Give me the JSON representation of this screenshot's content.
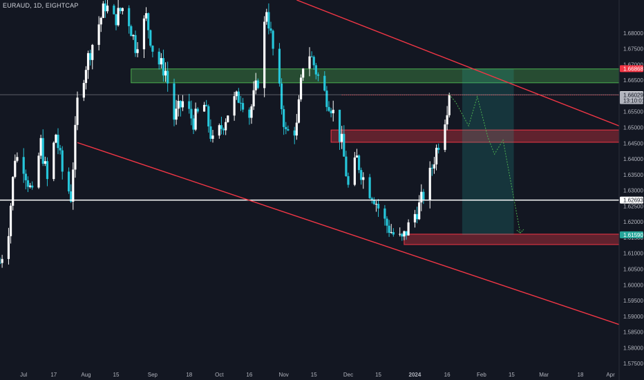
{
  "header": {
    "symbol_label": "EURAUD, 1D, EIGHTCAP"
  },
  "colors": {
    "background": "#131722",
    "bull": "#ffffff",
    "bear": "#26c6da",
    "trendline": "#f23645",
    "demand_zone": "#4caf50",
    "supply_zone": "#f23645",
    "target_zone": "#26a69a",
    "price_tag": "#ffffff",
    "current_tag": "#b2b5be",
    "alert_tag": "#f23645",
    "target_tag": "#26a69a"
  },
  "chart_data": {
    "type": "candlestick",
    "price_axis": {
      "min": 1.5735,
      "max": 1.6905,
      "ticks": [
        {
          "value": 1.68,
          "label": "1.68000"
        },
        {
          "value": 1.675,
          "label": "1.67500"
        },
        {
          "value": 1.67,
          "label": "1.67000"
        },
        {
          "value": 1.665,
          "label": "1.66500"
        },
        {
          "value": 1.66,
          "label": "1.66000"
        },
        {
          "value": 1.655,
          "label": "1.65500"
        },
        {
          "value": 1.65,
          "label": "1.65000"
        },
        {
          "value": 1.645,
          "label": "1.64500"
        },
        {
          "value": 1.64,
          "label": "1.64000"
        },
        {
          "value": 1.635,
          "label": "1.63500"
        },
        {
          "value": 1.63,
          "label": "1.63000"
        },
        {
          "value": 1.625,
          "label": "1.62500"
        },
        {
          "value": 1.62,
          "label": "1.62000"
        },
        {
          "value": 1.615,
          "label": "1.61500"
        },
        {
          "value": 1.61,
          "label": "1.61000"
        },
        {
          "value": 1.605,
          "label": "1.60500"
        },
        {
          "value": 1.6,
          "label": "1.60000"
        },
        {
          "value": 1.595,
          "label": "1.59500"
        },
        {
          "value": 1.59,
          "label": "1.59000"
        },
        {
          "value": 1.585,
          "label": "1.58500"
        },
        {
          "value": 1.58,
          "label": "1.58000"
        },
        {
          "value": 1.575,
          "label": "1.57500"
        }
      ]
    },
    "time_axis": {
      "start": "2023-06-22",
      "end": "2024-04-05",
      "ticks": [
        {
          "date": "2023-07-03",
          "label": "Jul"
        },
        {
          "date": "2023-07-17",
          "label": "17"
        },
        {
          "date": "2023-08-01",
          "label": "Aug"
        },
        {
          "date": "2023-08-15",
          "label": "15"
        },
        {
          "date": "2023-09-01",
          "label": "Sep"
        },
        {
          "date": "2023-09-18",
          "label": "18"
        },
        {
          "date": "2023-10-02",
          "label": "Oct"
        },
        {
          "date": "2023-10-16",
          "label": "16"
        },
        {
          "date": "2023-11-01",
          "label": "Nov"
        },
        {
          "date": "2023-11-15",
          "label": "15"
        },
        {
          "date": "2023-12-01",
          "label": "Dec"
        },
        {
          "date": "2023-12-15",
          "label": "15"
        },
        {
          "date": "2024-01-01",
          "label": "2024"
        },
        {
          "date": "2024-01-16",
          "label": "16"
        },
        {
          "date": "2024-02-01",
          "label": "Feb"
        },
        {
          "date": "2024-02-15",
          "label": "15"
        },
        {
          "date": "2024-03-01",
          "label": "Mar"
        },
        {
          "date": "2024-03-18",
          "label": "18"
        },
        {
          "date": "2024-04-01",
          "label": "Apr"
        }
      ]
    },
    "anchors": [
      {
        "date": "2023-06-22",
        "price": 1.607
      },
      {
        "date": "2023-06-26",
        "price": 1.618
      },
      {
        "date": "2023-06-29",
        "price": 1.641
      },
      {
        "date": "2023-07-03",
        "price": 1.638
      },
      {
        "date": "2023-07-07",
        "price": 1.628
      },
      {
        "date": "2023-07-11",
        "price": 1.645
      },
      {
        "date": "2023-07-14",
        "price": 1.633
      },
      {
        "date": "2023-07-18",
        "price": 1.648
      },
      {
        "date": "2023-07-21",
        "price": 1.636
      },
      {
        "date": "2023-07-25",
        "price": 1.628
      },
      {
        "date": "2023-07-28",
        "price": 1.658
      },
      {
        "date": "2023-08-01",
        "price": 1.67
      },
      {
        "date": "2023-08-06",
        "price": 1.681
      },
      {
        "date": "2023-08-10",
        "price": 1.689
      },
      {
        "date": "2023-08-14",
        "price": 1.684
      },
      {
        "date": "2023-08-19",
        "price": 1.689
      },
      {
        "date": "2023-08-24",
        "price": 1.676
      },
      {
        "date": "2023-08-29",
        "price": 1.685
      },
      {
        "date": "2023-09-02",
        "price": 1.672
      },
      {
        "date": "2023-09-07",
        "price": 1.668
      },
      {
        "date": "2023-09-11",
        "price": 1.653
      },
      {
        "date": "2023-09-15",
        "price": 1.658
      },
      {
        "date": "2023-09-20",
        "price": 1.652
      },
      {
        "date": "2023-09-25",
        "price": 1.657
      },
      {
        "date": "2023-09-29",
        "price": 1.645
      },
      {
        "date": "2023-10-03",
        "price": 1.65
      },
      {
        "date": "2023-10-08",
        "price": 1.658
      },
      {
        "date": "2023-10-12",
        "price": 1.66
      },
      {
        "date": "2023-10-16",
        "price": 1.654
      },
      {
        "date": "2023-10-20",
        "price": 1.665
      },
      {
        "date": "2023-10-24",
        "price": 1.688
      },
      {
        "date": "2023-10-28",
        "price": 1.67
      },
      {
        "date": "2023-11-02",
        "price": 1.648
      },
      {
        "date": "2023-11-07",
        "price": 1.65
      },
      {
        "date": "2023-11-11",
        "price": 1.677
      },
      {
        "date": "2023-11-15",
        "price": 1.67
      },
      {
        "date": "2023-11-19",
        "price": 1.662
      },
      {
        "date": "2023-11-23",
        "price": 1.657
      },
      {
        "date": "2023-11-28",
        "price": 1.645
      },
      {
        "date": "2023-12-01",
        "price": 1.631
      },
      {
        "date": "2023-12-05",
        "price": 1.64
      },
      {
        "date": "2023-12-09",
        "price": 1.632
      },
      {
        "date": "2023-12-13",
        "price": 1.628
      },
      {
        "date": "2023-12-17",
        "price": 1.621
      },
      {
        "date": "2023-12-22",
        "price": 1.616
      },
      {
        "date": "2023-12-26",
        "price": 1.614
      },
      {
        "date": "2023-12-30",
        "price": 1.62
      },
      {
        "date": "2024-01-03",
        "price": 1.625
      },
      {
        "date": "2024-01-07",
        "price": 1.632
      },
      {
        "date": "2024-01-11",
        "price": 1.643
      },
      {
        "date": "2024-01-14",
        "price": 1.65
      },
      {
        "date": "2024-01-17",
        "price": 1.6603
      }
    ],
    "price_lines": [
      {
        "price": 1.626925,
        "style": "solid",
        "tag": "1.62693"
      },
      {
        "price": 1.66042,
        "style": "solid-thin",
        "tag": "1.66042"
      }
    ],
    "current_price": {
      "price": 1.66029,
      "label": "1.66029",
      "countdown": "13:10:01"
    },
    "alert_level": {
      "price": 1.66868,
      "label": "1.66868"
    },
    "target_level": {
      "price": 1.6159,
      "label": "1.61590"
    },
    "zones": [
      {
        "name": "demand-zone-top",
        "from": "2023-08-22",
        "to": "2024-04-05",
        "high": 1.6686,
        "low": 1.6642
      },
      {
        "name": "supply-zone-mid",
        "from": "2023-11-23",
        "to": "2024-04-05",
        "high": 1.6492,
        "low": 1.6453
      },
      {
        "name": "support-zone-bottom",
        "from": "2023-12-27",
        "to": "2024-04-05",
        "high": 1.6161,
        "low": 1.6128
      }
    ],
    "target_box": {
      "from": "2024-01-23",
      "to": "2024-02-16",
      "top": 1.6686,
      "bottom": 1.6159
    },
    "trendlines": [
      {
        "from": {
          "date": "2023-11-07",
          "price": 1.6905
        },
        "to": {
          "date": "2024-04-05",
          "price": 1.6505
        }
      },
      {
        "from": {
          "date": "2023-07-28",
          "price": 1.6452
        },
        "to": {
          "date": "2024-04-05",
          "price": 1.5874
        }
      }
    ],
    "projection": [
      {
        "date": "2024-01-17",
        "price": 1.6605
      },
      {
        "date": "2024-01-20",
        "price": 1.658
      },
      {
        "date": "2024-01-26",
        "price": 1.6505
      },
      {
        "date": "2024-01-30",
        "price": 1.6598
      },
      {
        "date": "2024-02-04",
        "price": 1.6468
      },
      {
        "date": "2024-02-07",
        "price": 1.6415
      },
      {
        "date": "2024-02-11",
        "price": 1.646
      },
      {
        "date": "2024-02-19",
        "price": 1.6165
      }
    ]
  }
}
